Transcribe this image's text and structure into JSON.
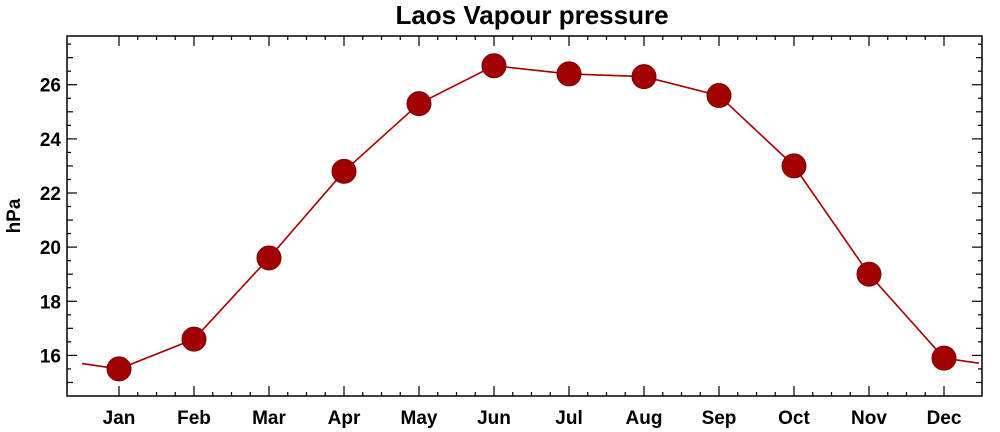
{
  "chart_data": {
    "type": "line",
    "title": "Laos Vapour pressure",
    "xlabel": "",
    "ylabel": "hPa",
    "categories": [
      "Jan",
      "Feb",
      "Mar",
      "Apr",
      "May",
      "Jun",
      "Jul",
      "Aug",
      "Sep",
      "Oct",
      "Nov",
      "Dec"
    ],
    "series": [
      {
        "values": [
          15.5,
          16.6,
          19.6,
          22.8,
          25.3,
          26.7,
          26.4,
          26.3,
          25.6,
          23.0,
          19.0,
          15.9
        ],
        "color": "#a00000",
        "marker": "circle"
      }
    ],
    "ylim": [
      14.5,
      27.8
    ],
    "yticks": [
      16,
      18,
      20,
      22,
      24,
      26
    ],
    "grid": false,
    "legend": "none"
  }
}
